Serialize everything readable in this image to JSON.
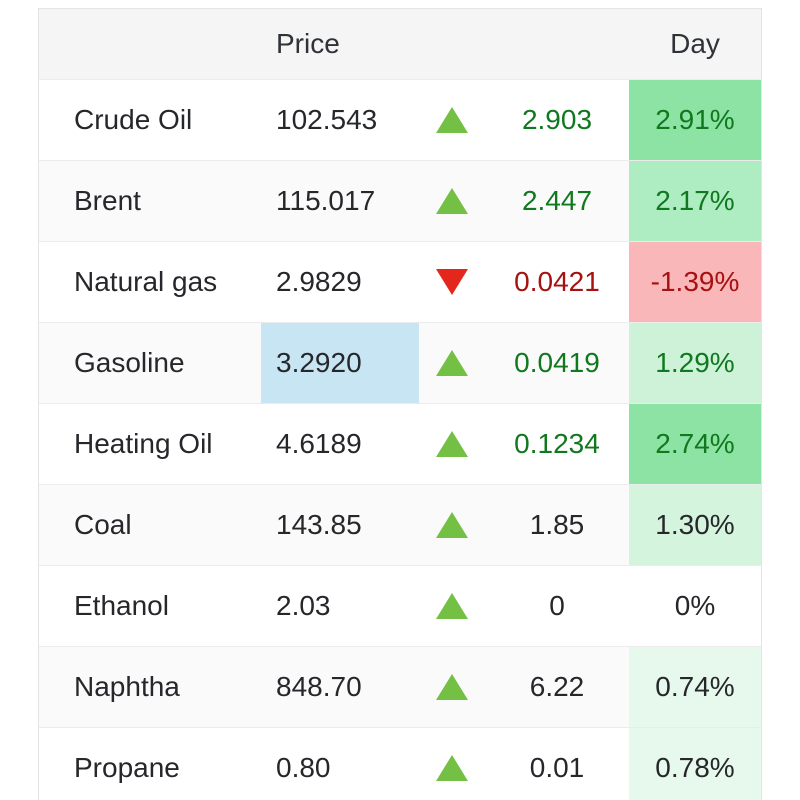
{
  "page": {
    "background": "#ffffff"
  },
  "table": {
    "header": {
      "price_label": "Price",
      "day_label": "Day"
    },
    "colors": {
      "up_triangle": "#74c044",
      "down_triangle": "#e3271c",
      "positive_text": "#10791f",
      "negative_text": "#a61111",
      "neutral_text": "#26272b",
      "header_bg": "#f5f5f6",
      "alt_row_bg": "#fafafa",
      "price_flash_bg": "#c8e5f3"
    },
    "rows": [
      {
        "name": "Crude Oil",
        "price": "102.543",
        "direction": "up",
        "change": "2.903",
        "day": "2.91%",
        "value_color": "#10791f",
        "day_bg": "#8ce3a3",
        "price_bg": null
      },
      {
        "name": "Brent",
        "price": "115.017",
        "direction": "up",
        "change": "2.447",
        "day": "2.17%",
        "value_color": "#10791f",
        "day_bg": "#aeecc1",
        "price_bg": null
      },
      {
        "name": "Natural gas",
        "price": "2.9829",
        "direction": "down",
        "change": "0.0421",
        "day": "-1.39%",
        "value_color": "#a61111",
        "day_bg": "#f9b7ba",
        "price_bg": null
      },
      {
        "name": "Gasoline",
        "price": "3.2920",
        "direction": "up",
        "change": "0.0419",
        "day": "1.29%",
        "value_color": "#10791f",
        "day_bg": "#cdf2d8",
        "price_bg": "#c8e5f3"
      },
      {
        "name": "Heating Oil",
        "price": "4.6189",
        "direction": "up",
        "change": "0.1234",
        "day": "2.74%",
        "value_color": "#10791f",
        "day_bg": "#8ce3a3",
        "price_bg": null
      },
      {
        "name": "Coal",
        "price": "143.85",
        "direction": "up",
        "change": "1.85",
        "day": "1.30%",
        "value_color": "#26272b",
        "day_bg": "#d5f4de",
        "price_bg": null
      },
      {
        "name": "Ethanol",
        "price": "2.03",
        "direction": "up",
        "change": "0",
        "day": "0%",
        "value_color": "#26272b",
        "day_bg": null,
        "price_bg": null
      },
      {
        "name": "Naphtha",
        "price": "848.70",
        "direction": "up",
        "change": "6.22",
        "day": "0.74%",
        "value_color": "#26272b",
        "day_bg": "#e7f8ed",
        "price_bg": null
      },
      {
        "name": "Propane",
        "price": "0.80",
        "direction": "up",
        "change": "0.01",
        "day": "0.78%",
        "value_color": "#26272b",
        "day_bg": "#e7f8ed",
        "price_bg": null
      }
    ]
  }
}
